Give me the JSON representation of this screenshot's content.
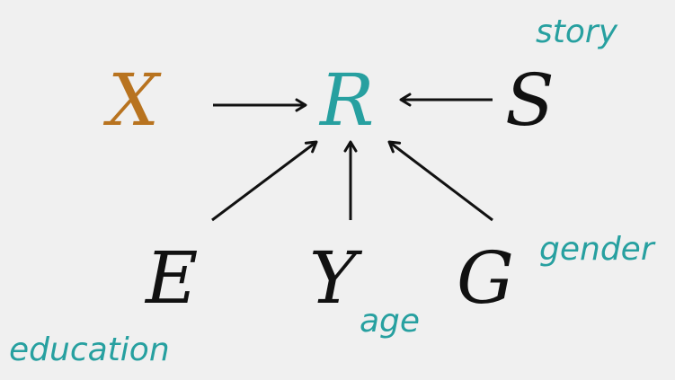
{
  "colors": {
    "background": "#f0f0f0",
    "x_node": "#b8731f",
    "r_node": "#27a0a0",
    "default_node": "#111111",
    "annotation": "#27a0a0",
    "edge": "#111111"
  },
  "nodes": {
    "x": "X",
    "r": "R",
    "s": "S",
    "e": "E",
    "y": "Y",
    "g": "G"
  },
  "annotations": {
    "story": "story",
    "gender": "gender",
    "age": "age",
    "education": "education"
  },
  "edges": [
    {
      "from": "X",
      "to": "R"
    },
    {
      "from": "S",
      "to": "R"
    },
    {
      "from": "E",
      "to": "R"
    },
    {
      "from": "Y",
      "to": "R"
    },
    {
      "from": "G",
      "to": "R"
    }
  ]
}
